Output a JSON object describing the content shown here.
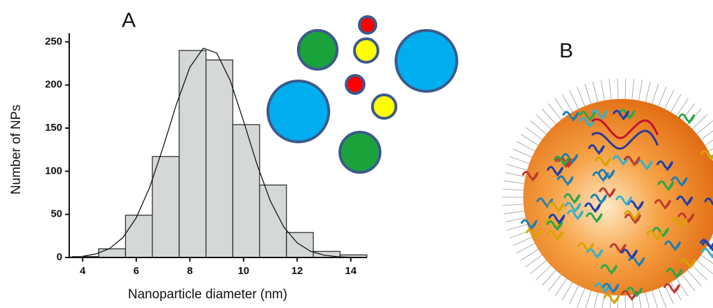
{
  "chart_data": {
    "type": "histogram",
    "panel_label": "A",
    "xlabel": "Nanoparticle diameter (nm)",
    "ylabel": "Number of NPs",
    "bins": [
      3.6,
      4.6,
      5.6,
      6.6,
      7.6,
      8.6,
      9.6,
      10.6,
      11.6,
      12.6,
      13.6,
      14.6
    ],
    "values": [
      1,
      10,
      49,
      117,
      240,
      229,
      154,
      84,
      29,
      7,
      3
    ],
    "color": "#d4d9d6",
    "fit": {
      "x": [
        4,
        4.5,
        5,
        5.5,
        6,
        6.5,
        7,
        7.5,
        8,
        8.5,
        9,
        9.5,
        10,
        10.5,
        11,
        11.5,
        12,
        12.5,
        13,
        13.5,
        14
      ],
      "y": [
        1.4,
        4.1,
        10.3,
        23.0,
        45.9,
        81.3,
        127.7,
        178.1,
        220.6,
        242.7,
        237,
        205.5,
        158.2,
        108.1,
        65.6,
        35.4,
        16.9,
        7.2,
        2.7,
        0.9,
        0.3
      ]
    },
    "xlim": [
      3.5,
      14.6
    ],
    "ylim": [
      0,
      260
    ],
    "xticks": [
      4,
      6,
      8,
      10,
      12,
      14
    ],
    "yticks": [
      0,
      50,
      100,
      150,
      200,
      250
    ]
  },
  "panel_b": {
    "label": "B"
  }
}
